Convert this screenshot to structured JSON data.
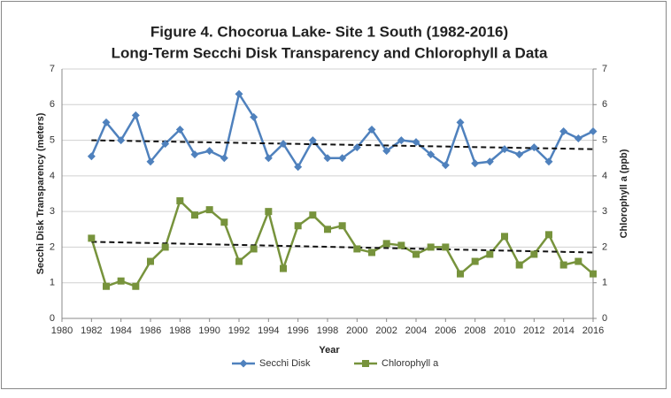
{
  "chart_data": {
    "type": "line",
    "title": [
      "Figure 4. Chocorua Lake- Site 1 South (1982-2016)",
      "Long-Term Secchi Disk Transparency and Chlorophyll a Data"
    ],
    "x_label": "Year",
    "y_label": "Secchi Disk Transparency (meters)",
    "y2_label": "Chlorophyll a (ppb)",
    "x": [
      1982,
      1983,
      1984,
      1985,
      1986,
      1987,
      1988,
      1989,
      1990,
      1991,
      1992,
      1993,
      1994,
      1995,
      1996,
      1997,
      1998,
      1999,
      2000,
      2001,
      2002,
      2003,
      2004,
      2005,
      2006,
      2007,
      2008,
      2009,
      2010,
      2011,
      2012,
      2013,
      2014,
      2015,
      2016
    ],
    "series": [
      {
        "name": "Secchi Disk",
        "color": "#4f81bd",
        "marker": "diamond",
        "axis": "y",
        "values": [
          4.55,
          5.5,
          5.0,
          5.7,
          4.4,
          4.9,
          5.3,
          4.6,
          4.7,
          4.5,
          6.3,
          5.65,
          4.5,
          4.9,
          4.25,
          5.0,
          4.5,
          4.5,
          4.8,
          5.3,
          4.7,
          5.0,
          4.95,
          4.6,
          4.3,
          5.5,
          4.35,
          4.4,
          4.75,
          4.6,
          4.8,
          4.4,
          5.25,
          5.05,
          5.25
        ]
      },
      {
        "name": "Chlorophyll a",
        "color": "#77933c",
        "marker": "square",
        "axis": "y2",
        "values": [
          2.25,
          0.9,
          1.05,
          0.9,
          1.6,
          2.0,
          3.3,
          2.9,
          3.05,
          2.7,
          1.6,
          1.95,
          3.0,
          1.4,
          2.6,
          2.9,
          2.5,
          2.6,
          1.95,
          1.85,
          2.1,
          2.05,
          1.8,
          2.0,
          2.0,
          1.25,
          1.6,
          1.8,
          2.3,
          1.5,
          1.8,
          2.35,
          1.5,
          1.6,
          1.25
        ]
      }
    ],
    "trendlines": [
      {
        "axis": "y",
        "x": [
          1982,
          2016
        ],
        "values": [
          5.0,
          4.75
        ]
      },
      {
        "axis": "y2",
        "x": [
          1982,
          2016
        ],
        "values": [
          2.15,
          1.85
        ]
      }
    ],
    "xlim": [
      1980,
      2016
    ],
    "xticks": [
      1980,
      1982,
      1984,
      1986,
      1988,
      1990,
      1992,
      1994,
      1996,
      1998,
      2000,
      2002,
      2004,
      2006,
      2008,
      2010,
      2012,
      2014,
      2016
    ],
    "ylim": [
      0,
      7
    ],
    "yticks": [
      0,
      1,
      2,
      3,
      4,
      5,
      6,
      7
    ],
    "y2lim": [
      0,
      7
    ],
    "y2ticks": [
      0,
      1,
      2,
      3,
      4,
      5,
      6,
      7
    ],
    "grid": true,
    "legend": "bottom"
  }
}
